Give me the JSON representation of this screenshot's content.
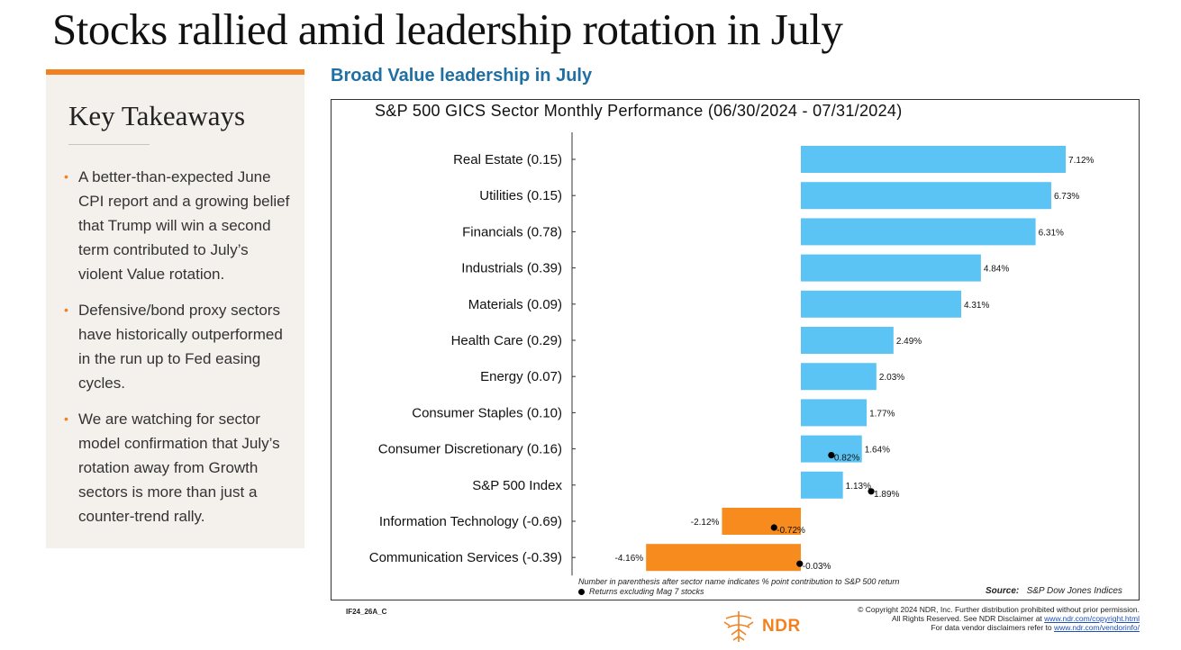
{
  "page": {
    "title": "Stocks rallied amid leadership rotation in July"
  },
  "takeaways": {
    "heading": "Key Takeaways",
    "items": [
      "A better-than-expected June CPI report and a growing belief that Trump will win a second term contributed to July’s violent Value rotation.",
      "Defensive/bond proxy sectors have historically outperformed in the run up to Fed easing cycles.",
      "We are watching for sector model confirmation that July’s rotation away from Growth sectors is more than just a counter-trend rally."
    ],
    "bullet": "•"
  },
  "subtitle": "Broad Value leadership in July",
  "chart_data": {
    "type": "bar",
    "orientation": "horizontal",
    "title": "S&P 500 GICS Sector Monthly Performance (06/30/2024 - 07/31/2024)",
    "categories": [
      "Real Estate (0.15)",
      "Utilities (0.15)",
      "Financials (0.78)",
      "Industrials (0.39)",
      "Materials (0.09)",
      "Health Care (0.29)",
      "Energy (0.07)",
      "Consumer Staples (0.10)",
      "Consumer Discretionary (0.16)",
      "S&P 500 Index",
      "Information Technology (-0.69)",
      "Communication Services (-0.39)"
    ],
    "series": [
      {
        "values": [
          7.12,
          6.73,
          6.31,
          4.84,
          4.31,
          2.49,
          2.03,
          1.77,
          1.64,
          1.13,
          -2.12,
          -4.16
        ],
        "labels": [
          "7.12%",
          "6.73%",
          "6.31%",
          "4.84%",
          "4.31%",
          "2.49%",
          "2.03%",
          "1.77%",
          "1.64%",
          "1.13%",
          "-2.12%",
          "-4.16%"
        ]
      },
      {
        "name": "Returns excluding Mag 7 stocks",
        "marker": "dot",
        "points": [
          {
            "category": "Consumer Discretionary (0.16)",
            "value": 0.82,
            "label": "0.82%"
          },
          {
            "category": "S&P 500 Index",
            "value": 1.89,
            "label": "1.89%"
          },
          {
            "category": "Information Technology (-0.69)",
            "value": -0.72,
            "label": "-0.72%"
          },
          {
            "category": "Communication Services (-0.39)",
            "value": -0.03,
            "label": "-0.03%"
          }
        ]
      }
    ],
    "colors": {
      "positive": "#5bc4f5",
      "negative": "#f78b1e",
      "marker": "#000000"
    },
    "xlim": [
      -4.3,
      7.3
    ],
    "footnote": "Number in parenthesis after sector name indicates % point contribution to S&P 500 return",
    "legend_text": "Returns excluding Mag 7 stocks"
  },
  "source": {
    "label": "Source:",
    "text": "S&P Dow Jones Indices"
  },
  "code": "IF24_26A_C",
  "copyright": {
    "line1": "© Copyright 2024 NDR, Inc. Further distribution prohibited without prior permission.",
    "line2_prefix": "All Rights Reserved. See NDR Disclaimer at",
    "line2_link": "www.ndr.com/copyright.html",
    "line3_prefix": "For data vendor disclaimers refer to",
    "line3_link": "www.ndr.com/vendorinfo/"
  },
  "logo": {
    "text": "NDR",
    "color": "#f2801f"
  }
}
